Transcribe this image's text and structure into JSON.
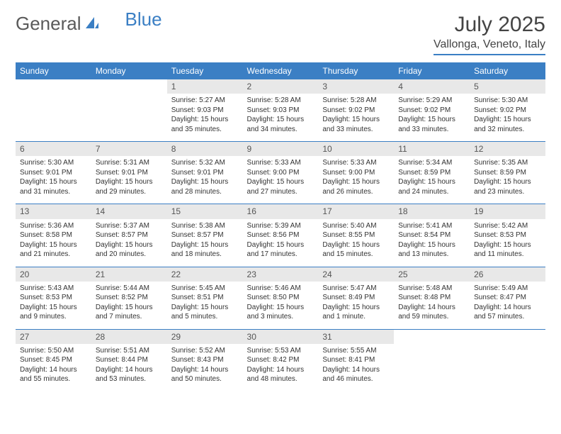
{
  "logo": {
    "text1": "General",
    "text2": "Blue"
  },
  "title": "July 2025",
  "location": "Vallonga, Veneto, Italy",
  "colors": {
    "header_bg": "#3b7fc4",
    "header_text": "#ffffff",
    "daynum_bg": "#e8e8e8",
    "row_border": "#3b7fc4"
  },
  "day_headers": [
    "Sunday",
    "Monday",
    "Tuesday",
    "Wednesday",
    "Thursday",
    "Friday",
    "Saturday"
  ],
  "weeks": [
    [
      {
        "n": "",
        "s": "",
        "t": "",
        "d": ""
      },
      {
        "n": "",
        "s": "",
        "t": "",
        "d": ""
      },
      {
        "n": "1",
        "s": "Sunrise: 5:27 AM",
        "t": "Sunset: 9:03 PM",
        "d": "Daylight: 15 hours and 35 minutes."
      },
      {
        "n": "2",
        "s": "Sunrise: 5:28 AM",
        "t": "Sunset: 9:03 PM",
        "d": "Daylight: 15 hours and 34 minutes."
      },
      {
        "n": "3",
        "s": "Sunrise: 5:28 AM",
        "t": "Sunset: 9:02 PM",
        "d": "Daylight: 15 hours and 33 minutes."
      },
      {
        "n": "4",
        "s": "Sunrise: 5:29 AM",
        "t": "Sunset: 9:02 PM",
        "d": "Daylight: 15 hours and 33 minutes."
      },
      {
        "n": "5",
        "s": "Sunrise: 5:30 AM",
        "t": "Sunset: 9:02 PM",
        "d": "Daylight: 15 hours and 32 minutes."
      }
    ],
    [
      {
        "n": "6",
        "s": "Sunrise: 5:30 AM",
        "t": "Sunset: 9:01 PM",
        "d": "Daylight: 15 hours and 31 minutes."
      },
      {
        "n": "7",
        "s": "Sunrise: 5:31 AM",
        "t": "Sunset: 9:01 PM",
        "d": "Daylight: 15 hours and 29 minutes."
      },
      {
        "n": "8",
        "s": "Sunrise: 5:32 AM",
        "t": "Sunset: 9:01 PM",
        "d": "Daylight: 15 hours and 28 minutes."
      },
      {
        "n": "9",
        "s": "Sunrise: 5:33 AM",
        "t": "Sunset: 9:00 PM",
        "d": "Daylight: 15 hours and 27 minutes."
      },
      {
        "n": "10",
        "s": "Sunrise: 5:33 AM",
        "t": "Sunset: 9:00 PM",
        "d": "Daylight: 15 hours and 26 minutes."
      },
      {
        "n": "11",
        "s": "Sunrise: 5:34 AM",
        "t": "Sunset: 8:59 PM",
        "d": "Daylight: 15 hours and 24 minutes."
      },
      {
        "n": "12",
        "s": "Sunrise: 5:35 AM",
        "t": "Sunset: 8:59 PM",
        "d": "Daylight: 15 hours and 23 minutes."
      }
    ],
    [
      {
        "n": "13",
        "s": "Sunrise: 5:36 AM",
        "t": "Sunset: 8:58 PM",
        "d": "Daylight: 15 hours and 21 minutes."
      },
      {
        "n": "14",
        "s": "Sunrise: 5:37 AM",
        "t": "Sunset: 8:57 PM",
        "d": "Daylight: 15 hours and 20 minutes."
      },
      {
        "n": "15",
        "s": "Sunrise: 5:38 AM",
        "t": "Sunset: 8:57 PM",
        "d": "Daylight: 15 hours and 18 minutes."
      },
      {
        "n": "16",
        "s": "Sunrise: 5:39 AM",
        "t": "Sunset: 8:56 PM",
        "d": "Daylight: 15 hours and 17 minutes."
      },
      {
        "n": "17",
        "s": "Sunrise: 5:40 AM",
        "t": "Sunset: 8:55 PM",
        "d": "Daylight: 15 hours and 15 minutes."
      },
      {
        "n": "18",
        "s": "Sunrise: 5:41 AM",
        "t": "Sunset: 8:54 PM",
        "d": "Daylight: 15 hours and 13 minutes."
      },
      {
        "n": "19",
        "s": "Sunrise: 5:42 AM",
        "t": "Sunset: 8:53 PM",
        "d": "Daylight: 15 hours and 11 minutes."
      }
    ],
    [
      {
        "n": "20",
        "s": "Sunrise: 5:43 AM",
        "t": "Sunset: 8:53 PM",
        "d": "Daylight: 15 hours and 9 minutes."
      },
      {
        "n": "21",
        "s": "Sunrise: 5:44 AM",
        "t": "Sunset: 8:52 PM",
        "d": "Daylight: 15 hours and 7 minutes."
      },
      {
        "n": "22",
        "s": "Sunrise: 5:45 AM",
        "t": "Sunset: 8:51 PM",
        "d": "Daylight: 15 hours and 5 minutes."
      },
      {
        "n": "23",
        "s": "Sunrise: 5:46 AM",
        "t": "Sunset: 8:50 PM",
        "d": "Daylight: 15 hours and 3 minutes."
      },
      {
        "n": "24",
        "s": "Sunrise: 5:47 AM",
        "t": "Sunset: 8:49 PM",
        "d": "Daylight: 15 hours and 1 minute."
      },
      {
        "n": "25",
        "s": "Sunrise: 5:48 AM",
        "t": "Sunset: 8:48 PM",
        "d": "Daylight: 14 hours and 59 minutes."
      },
      {
        "n": "26",
        "s": "Sunrise: 5:49 AM",
        "t": "Sunset: 8:47 PM",
        "d": "Daylight: 14 hours and 57 minutes."
      }
    ],
    [
      {
        "n": "27",
        "s": "Sunrise: 5:50 AM",
        "t": "Sunset: 8:45 PM",
        "d": "Daylight: 14 hours and 55 minutes."
      },
      {
        "n": "28",
        "s": "Sunrise: 5:51 AM",
        "t": "Sunset: 8:44 PM",
        "d": "Daylight: 14 hours and 53 minutes."
      },
      {
        "n": "29",
        "s": "Sunrise: 5:52 AM",
        "t": "Sunset: 8:43 PM",
        "d": "Daylight: 14 hours and 50 minutes."
      },
      {
        "n": "30",
        "s": "Sunrise: 5:53 AM",
        "t": "Sunset: 8:42 PM",
        "d": "Daylight: 14 hours and 48 minutes."
      },
      {
        "n": "31",
        "s": "Sunrise: 5:55 AM",
        "t": "Sunset: 8:41 PM",
        "d": "Daylight: 14 hours and 46 minutes."
      },
      {
        "n": "",
        "s": "",
        "t": "",
        "d": ""
      },
      {
        "n": "",
        "s": "",
        "t": "",
        "d": ""
      }
    ]
  ]
}
